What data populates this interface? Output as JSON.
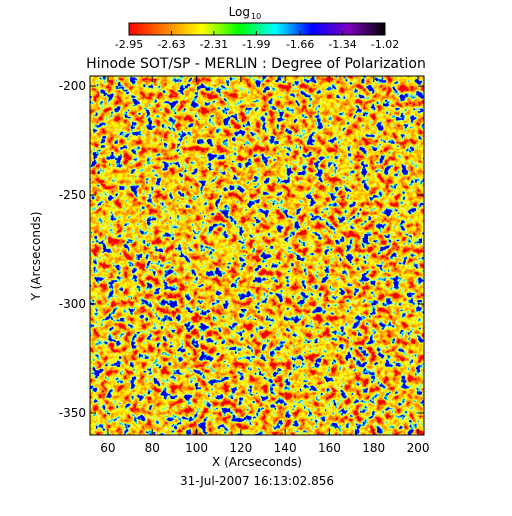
{
  "chart_data": {
    "type": "heatmap",
    "title": "Hinode SOT/SP - MERLIN : Degree of Polarization",
    "xlabel": "X (Arcseconds)",
    "ylabel": "Y (Arcseconds)",
    "annotation": "31-Jul-2007 16:13:02.856",
    "xlim": [
      51.9,
      202.7
    ],
    "xticks": [
      60,
      80,
      100,
      120,
      140,
      160,
      180,
      200
    ],
    "ylim": [
      -360.1,
      -195.4
    ],
    "yticks": [
      -350,
      -300,
      -250,
      -200
    ],
    "colorbar_label": "Log",
    "colorbar_label_subscript": "10",
    "colorbar_lim": [
      -2.95,
      -1.02
    ],
    "colorbar_ticks": [
      -2.95,
      -2.63,
      -2.31,
      -1.99,
      -1.66,
      -1.34,
      -1.02
    ],
    "colormap": [
      "#ff0000",
      "#ff8000",
      "#ffff00",
      "#00ff00",
      "#00ffff",
      "#0000ff",
      "#8000c0",
      "#000000"
    ]
  }
}
